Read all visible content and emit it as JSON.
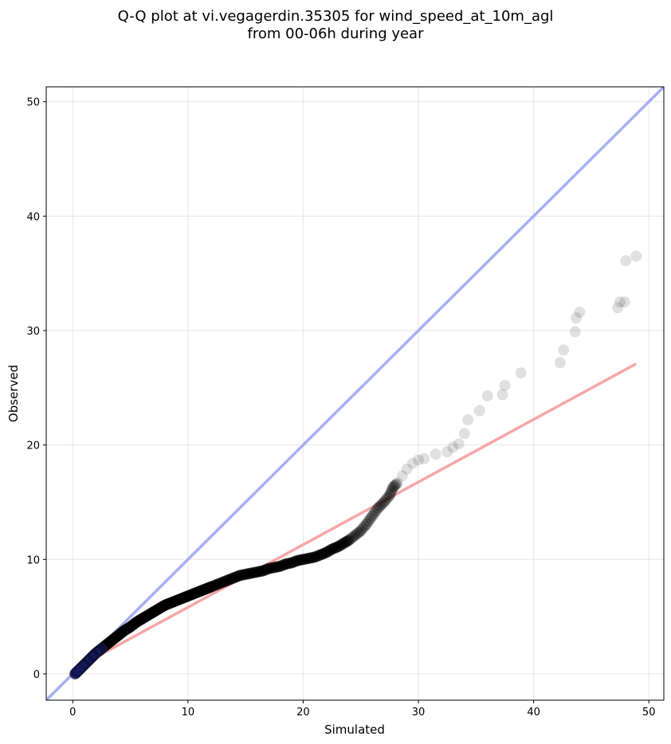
{
  "chart_data": {
    "type": "scatter",
    "title": "Q-Q plot at vi.vegagerdin.35305 for wind_speed_at_10m_agl",
    "subtitle": "from 00-06h during year",
    "xlabel": "Simulated",
    "ylabel": "Observed",
    "xlim": [
      -2.3,
      51.3
    ],
    "ylim": [
      -2.3,
      51.3
    ],
    "x_ticks": [
      0,
      10,
      20,
      30,
      40,
      50
    ],
    "y_ticks": [
      0,
      10,
      20,
      30,
      40,
      50
    ],
    "grid": true,
    "points": [
      [
        0.2,
        0.0
      ],
      [
        0.5,
        0.3
      ],
      [
        0.8,
        0.6
      ],
      [
        1.2,
        1.0
      ],
      [
        1.6,
        1.4
      ],
      [
        2.0,
        1.8
      ],
      [
        2.5,
        2.2
      ],
      [
        3.0,
        2.6
      ],
      [
        3.5,
        3.0
      ],
      [
        4.0,
        3.4
      ],
      [
        4.5,
        3.8
      ],
      [
        5.0,
        4.1
      ],
      [
        5.5,
        4.5
      ],
      [
        6.0,
        4.8
      ],
      [
        6.5,
        5.1
      ],
      [
        7.0,
        5.4
      ],
      [
        7.5,
        5.7
      ],
      [
        8.0,
        6.0
      ],
      [
        8.5,
        6.2
      ],
      [
        9.0,
        6.4
      ],
      [
        9.5,
        6.6
      ],
      [
        10.0,
        6.8
      ],
      [
        10.5,
        7.0
      ],
      [
        11.0,
        7.2
      ],
      [
        11.5,
        7.4
      ],
      [
        12.0,
        7.6
      ],
      [
        12.5,
        7.8
      ],
      [
        13.0,
        8.0
      ],
      [
        13.5,
        8.2
      ],
      [
        14.0,
        8.4
      ],
      [
        14.5,
        8.6
      ],
      [
        15.0,
        8.7
      ],
      [
        15.5,
        8.8
      ],
      [
        16.0,
        8.9
      ],
      [
        16.5,
        9.0
      ],
      [
        17.0,
        9.2
      ],
      [
        17.5,
        9.3
      ],
      [
        18.0,
        9.4
      ],
      [
        18.5,
        9.6
      ],
      [
        19.0,
        9.7
      ],
      [
        19.5,
        9.9
      ],
      [
        20.0,
        10.0
      ],
      [
        20.5,
        10.1
      ],
      [
        21.0,
        10.2
      ],
      [
        21.5,
        10.4
      ],
      [
        22.0,
        10.6
      ],
      [
        22.5,
        10.9
      ],
      [
        23.0,
        11.1
      ],
      [
        23.5,
        11.4
      ],
      [
        24.0,
        11.7
      ],
      [
        24.5,
        12.1
      ],
      [
        25.0,
        12.5
      ],
      [
        25.5,
        13.1
      ],
      [
        26.0,
        13.8
      ],
      [
        26.5,
        14.5
      ],
      [
        27.0,
        15.0
      ],
      [
        27.5,
        15.6
      ],
      [
        27.8,
        16.3
      ],
      [
        28.2,
        16.7
      ],
      [
        28.6,
        17.3
      ],
      [
        29.0,
        17.9
      ],
      [
        29.5,
        18.4
      ],
      [
        30.0,
        18.7
      ],
      [
        30.5,
        18.8
      ],
      [
        31.5,
        19.2
      ],
      [
        32.5,
        19.4
      ],
      [
        33.0,
        19.8
      ],
      [
        33.5,
        20.1
      ],
      [
        34.0,
        21.0
      ],
      [
        34.3,
        22.2
      ],
      [
        35.3,
        23.0
      ],
      [
        36.0,
        24.3
      ],
      [
        37.3,
        24.4
      ],
      [
        37.5,
        25.2
      ],
      [
        38.9,
        26.3
      ],
      [
        42.3,
        27.2
      ],
      [
        42.6,
        28.3
      ],
      [
        43.6,
        29.9
      ],
      [
        43.7,
        31.1
      ],
      [
        44.0,
        31.6
      ],
      [
        47.3,
        32.0
      ],
      [
        47.5,
        32.5
      ],
      [
        47.9,
        32.5
      ],
      [
        48.0,
        36.1
      ],
      [
        48.9,
        36.5
      ]
    ],
    "series": [
      {
        "type": "line",
        "color": "#a9aef5",
        "x": [
          -2.3,
          51.3
        ],
        "y": [
          -2.3,
          51.3
        ]
      },
      {
        "type": "line",
        "color": "#f7a6a6",
        "x": [
          0.0,
          48.9
        ],
        "y": [
          0.35,
          27.1
        ]
      }
    ],
    "colors": {
      "identity_line": "#a9aef5",
      "fit_line": "#f7a6a6",
      "points": "#000000",
      "dense_points_tint": "#1a237e"
    }
  }
}
